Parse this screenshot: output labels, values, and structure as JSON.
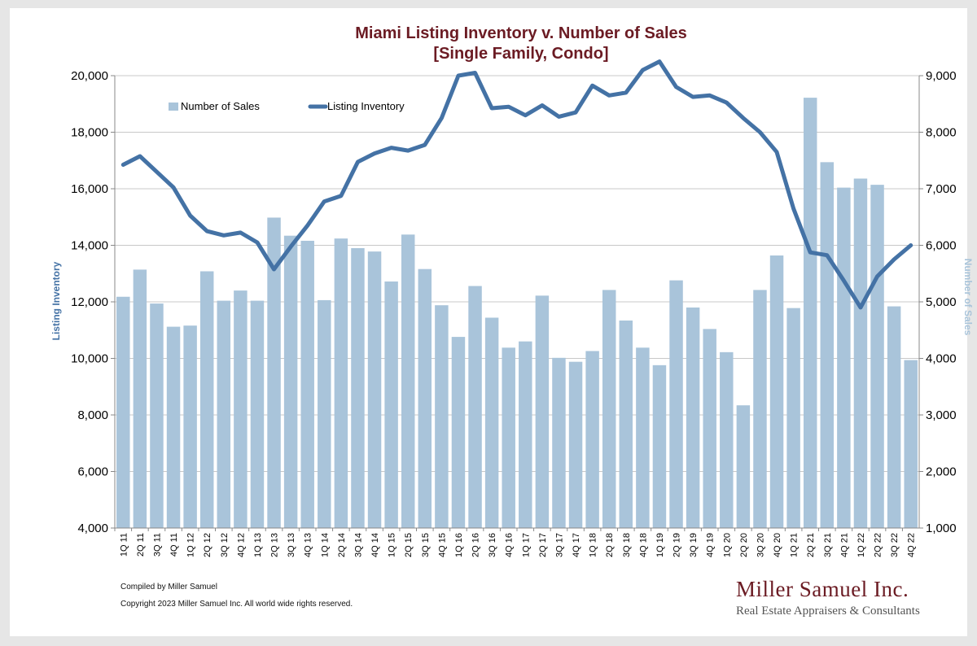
{
  "footer": {
    "compiled": "Compiled by Miller Samuel",
    "copyright": "Copyright 2023 Miller Samuel Inc.  All world wide rights reserved."
  },
  "brand": {
    "name": "Miller Samuel Inc.",
    "tagline": "Real Estate Appraisers & Consultants",
    "color": "#6b1b23"
  },
  "chart_data": {
    "type": "bar",
    "title": "Miami Listing Inventory v. Number of Sales",
    "subtitle": "[Single Family, Condo]",
    "ylabel_left": "Listing Inventory",
    "ylabel_right": "Number of Sales",
    "ylim_left": [
      4000,
      20000
    ],
    "ylim_right": [
      1000,
      9000
    ],
    "yticks_left": [
      "4,000",
      "6,000",
      "8,000",
      "10,000",
      "12,000",
      "14,000",
      "16,000",
      "18,000",
      "20,000"
    ],
    "yticks_right": [
      "1,000",
      "2,000",
      "3,000",
      "4,000",
      "5,000",
      "6,000",
      "7,000",
      "8,000",
      "9,000"
    ],
    "grid": true,
    "legend_position": "top-left",
    "categories": [
      "1Q 11",
      "2Q 11",
      "3Q 11",
      "4Q 11",
      "1Q 12",
      "2Q 12",
      "3Q 12",
      "4Q 12",
      "1Q 13",
      "2Q 13",
      "3Q 13",
      "4Q 13",
      "1Q 14",
      "2Q 14",
      "3Q 14",
      "4Q 14",
      "1Q 15",
      "2Q 15",
      "3Q 15",
      "4Q 15",
      "1Q 16",
      "2Q 16",
      "3Q 16",
      "4Q 16",
      "1Q 17",
      "2Q 17",
      "3Q 17",
      "4Q 17",
      "1Q 18",
      "2Q 18",
      "3Q 18",
      "4Q 18",
      "1Q 19",
      "2Q 19",
      "3Q 19",
      "4Q 19",
      "1Q 20",
      "2Q 20",
      "3Q 20",
      "4Q 20",
      "1Q 21",
      "2Q 21",
      "3Q 21",
      "4Q 21",
      "1Q 22",
      "2Q 22",
      "3Q 22",
      "4Q 22"
    ],
    "series": [
      {
        "name": "Number of Sales",
        "type": "bar",
        "axis": "right",
        "color": "#a9c4da",
        "values": [
          5090,
          5570,
          4970,
          4560,
          4580,
          5540,
          5020,
          5200,
          5020,
          6490,
          6170,
          6080,
          5030,
          6120,
          5950,
          5890,
          5360,
          6190,
          5580,
          4940,
          4380,
          5280,
          4720,
          4190,
          4300,
          5110,
          4010,
          3940,
          4130,
          5210,
          4670,
          4190,
          3880,
          5380,
          4900,
          4520,
          4110,
          3170,
          5210,
          5820,
          4890,
          8610,
          7470,
          7020,
          7180,
          7070,
          4920,
          3970
        ]
      },
      {
        "name": "Listing Inventory",
        "type": "line",
        "axis": "left",
        "color": "#4472a5",
        "values": [
          16850,
          17150,
          16600,
          16050,
          15050,
          14500,
          14350,
          14450,
          14100,
          13150,
          13950,
          14700,
          15550,
          15750,
          16950,
          17250,
          17450,
          17350,
          17550,
          18500,
          20000,
          20100,
          18850,
          18900,
          18600,
          18950,
          18550,
          18700,
          19650,
          19300,
          19400,
          20200,
          20500,
          19600,
          19250,
          19300,
          19050,
          18500,
          18000,
          17300,
          15300,
          13750,
          13650,
          12750,
          11800,
          12900,
          13500,
          14000
        ]
      }
    ]
  }
}
